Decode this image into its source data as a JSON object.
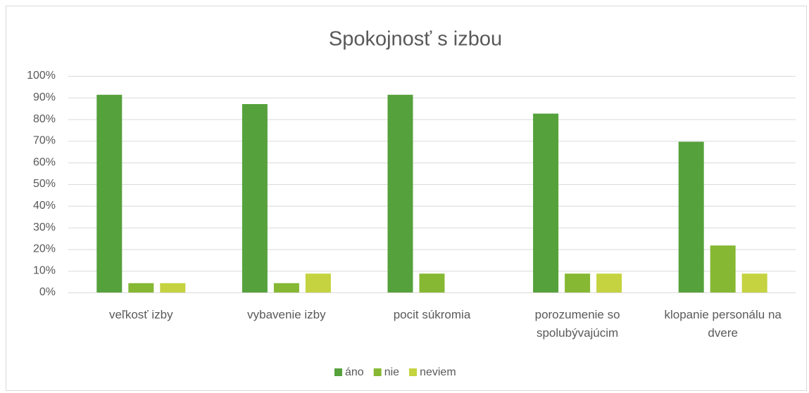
{
  "chart_data": {
    "type": "bar",
    "title": "Spokojnosť s izbou",
    "categories": [
      "veľkosť izby",
      "vybavenie izby",
      "pocit súkromia",
      "porozumenie so spolubývajúcim",
      "klopanie personálu na dvere"
    ],
    "series": [
      {
        "name": "áno",
        "color": "#55a13b",
        "values": [
          91.3,
          87.0,
          91.3,
          82.6,
          69.6
        ]
      },
      {
        "name": "nie",
        "color": "#86b833",
        "values": [
          4.3,
          4.3,
          8.7,
          8.7,
          21.7
        ]
      },
      {
        "name": "neviem",
        "color": "#c4d33f",
        "values": [
          4.3,
          8.7,
          0,
          8.7,
          8.7
        ]
      }
    ],
    "ylim": [
      0,
      100
    ],
    "yticks": [
      {
        "value": 0,
        "label": "0%"
      },
      {
        "value": 10,
        "label": "10%"
      },
      {
        "value": 20,
        "label": "20%"
      },
      {
        "value": 30,
        "label": "30%"
      },
      {
        "value": 40,
        "label": "40%"
      },
      {
        "value": 50,
        "label": "50%"
      },
      {
        "value": 60,
        "label": "60%"
      },
      {
        "value": 70,
        "label": "70%"
      },
      {
        "value": 80,
        "label": "80%"
      },
      {
        "value": 90,
        "label": "90%"
      },
      {
        "value": 100,
        "label": "100%"
      }
    ],
    "grid": true,
    "legend": "bottom"
  }
}
